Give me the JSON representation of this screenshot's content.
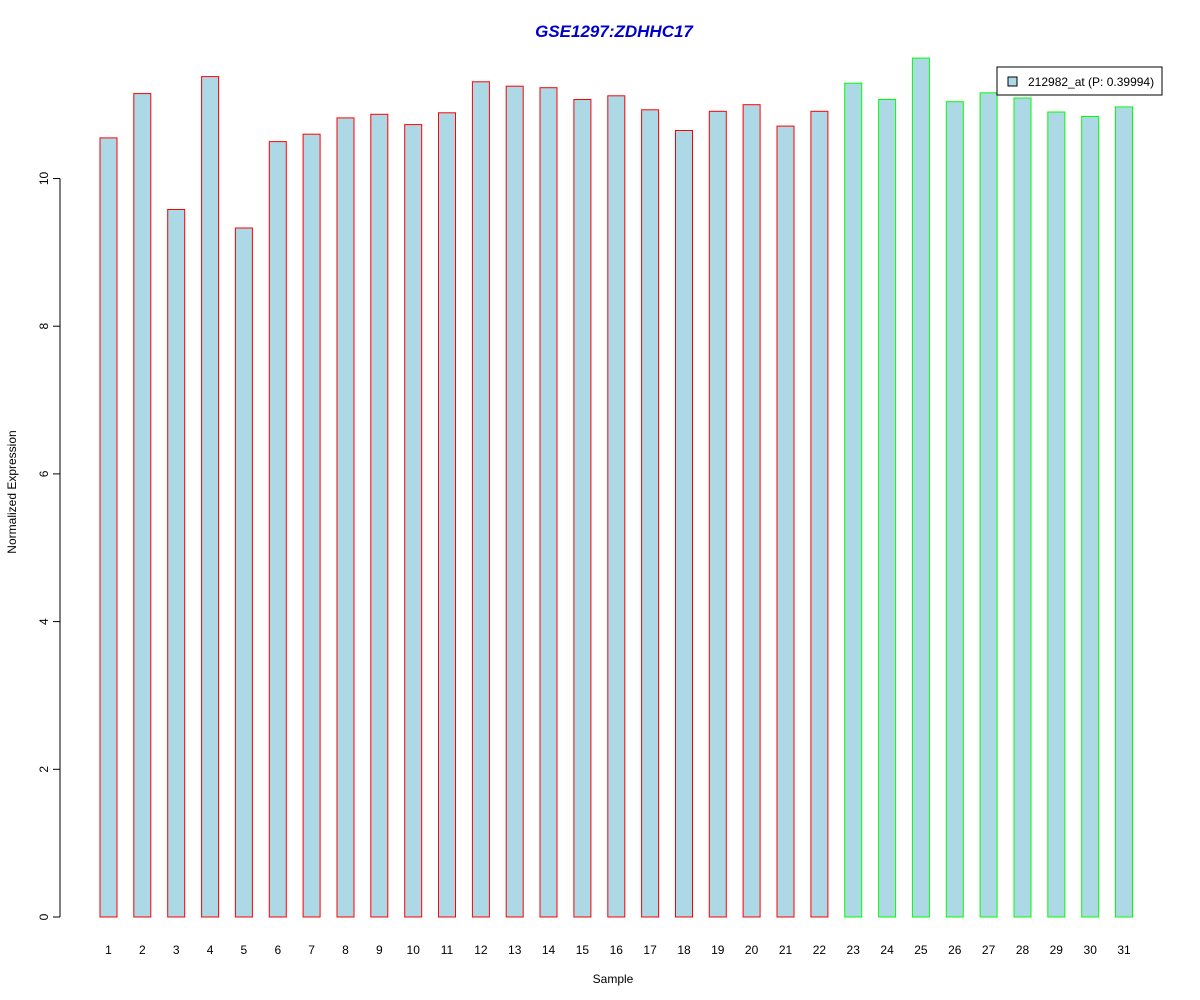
{
  "chart_data": {
    "type": "bar",
    "title": "GSE1297:ZDHHC17",
    "xlabel": "Sample",
    "ylabel": "Normalized Expression",
    "ylim": [
      0,
      11.7
    ],
    "yticks": [
      0,
      2,
      4,
      6,
      8,
      10
    ],
    "categories": [
      "1",
      "2",
      "3",
      "4",
      "5",
      "6",
      "7",
      "8",
      "9",
      "10",
      "11",
      "12",
      "13",
      "14",
      "15",
      "16",
      "17",
      "18",
      "19",
      "20",
      "21",
      "22",
      "23",
      "24",
      "25",
      "26",
      "27",
      "28",
      "29",
      "30",
      "31"
    ],
    "values": [
      10.55,
      11.15,
      9.58,
      11.38,
      9.33,
      10.5,
      10.6,
      10.82,
      10.87,
      10.73,
      10.89,
      11.31,
      11.25,
      11.23,
      11.07,
      11.12,
      10.93,
      10.65,
      10.91,
      11.0,
      10.71,
      10.91,
      11.29,
      11.07,
      11.63,
      11.04,
      11.16,
      11.09,
      10.9,
      10.84,
      10.97
    ],
    "groups": [
      "red",
      "red",
      "red",
      "red",
      "red",
      "red",
      "red",
      "red",
      "red",
      "red",
      "red",
      "red",
      "red",
      "red",
      "red",
      "red",
      "red",
      "red",
      "red",
      "red",
      "red",
      "red",
      "green",
      "green",
      "green",
      "green",
      "green",
      "green",
      "green",
      "green",
      "green"
    ],
    "legend": {
      "placement": "top-right",
      "entries": [
        {
          "label": "212982_at (P: 0.39994)",
          "color": "#add8e6"
        }
      ]
    },
    "grid": false
  },
  "colors": {
    "bar_fill": "#add8e6",
    "border_red": "#ff0000",
    "border_green": "#00ff00",
    "title": "#0000cc"
  }
}
